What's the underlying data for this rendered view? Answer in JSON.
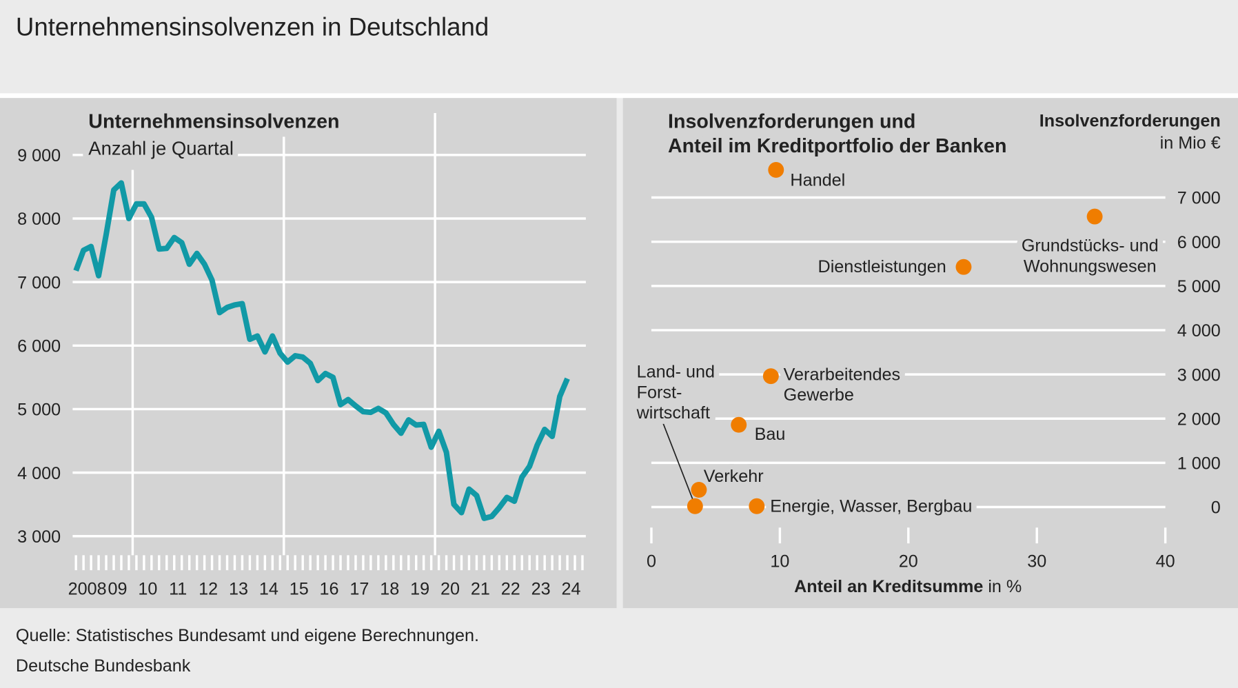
{
  "header": {
    "title": "Unternehmensinsolvenzen in Deutschland"
  },
  "chart_data": [
    {
      "type": "line",
      "title": "Unternehmensinsolvenzen",
      "subtitle": "Anzahl je Quartal",
      "x_labels": [
        "2008",
        "09",
        "10",
        "11",
        "12",
        "13",
        "14",
        "15",
        "16",
        "17",
        "18",
        "19",
        "20",
        "21",
        "22",
        "23",
        "24"
      ],
      "values": [
        7180,
        7500,
        7560,
        7100,
        7750,
        8450,
        8560,
        8000,
        8230,
        8230,
        8020,
        7520,
        7530,
        7700,
        7620,
        7280,
        7450,
        7280,
        7030,
        6520,
        6600,
        6640,
        6660,
        6100,
        6150,
        5900,
        6150,
        5880,
        5740,
        5840,
        5820,
        5720,
        5450,
        5560,
        5500,
        5070,
        5150,
        5050,
        4960,
        4950,
        5010,
        4940,
        4760,
        4620,
        4830,
        4750,
        4760,
        4400,
        4650,
        4320,
        3500,
        3370,
        3740,
        3640,
        3280,
        3310,
        3450,
        3610,
        3550,
        3930,
        4100,
        4430,
        4680,
        4570,
        5200,
        5480
      ],
      "color": "#1199a6",
      "ylim": [
        2700,
        9300
      ],
      "yticks": [
        {
          "value": 3000,
          "label": "3 000"
        },
        {
          "value": 4000,
          "label": "4 000"
        },
        {
          "value": 5000,
          "label": "5 000"
        },
        {
          "value": 6000,
          "label": "6 000"
        },
        {
          "value": 7000,
          "label": "7 000"
        },
        {
          "value": 8000,
          "label": "8 000"
        },
        {
          "value": 9000,
          "label": "9 000"
        }
      ],
      "grid": true
    },
    {
      "type": "scatter",
      "title": [
        "Insolvenzforderungen und",
        "Anteil im Kreditportfolio der Banken"
      ],
      "y_label": [
        "Insolvenzforderungen",
        "in Mio €"
      ],
      "x_label": [
        "Anteil an Kreditsumme",
        "in %"
      ],
      "labels": [
        [
          "Handel"
        ],
        [
          "Grundstücks- und",
          "Wohnungswesen"
        ],
        [
          "Dienstleistungen"
        ],
        [
          "Verarbeitendes",
          "Gewerbe"
        ],
        [
          "Bau"
        ],
        [
          "Verkehr"
        ],
        [
          "Land- und",
          "Forst-",
          "wirtschaft"
        ],
        [
          "Energie, Wasser, Bergbau"
        ]
      ],
      "x": [
        9.7,
        34.5,
        24.3,
        9.3,
        6.8,
        3.7,
        3.4,
        8.2
      ],
      "values": [
        7625,
        6570,
        5430,
        2960,
        1860,
        390,
        20,
        20
      ],
      "color": "#f07d00",
      "xlim": [
        0,
        40
      ],
      "xticks": [
        0,
        10,
        20,
        30,
        40
      ],
      "ylim": [
        -500,
        8000
      ],
      "yticks": [
        0,
        {
          "value": 1000,
          "label": "1 000"
        },
        {
          "value": 2000,
          "label": "2 000"
        },
        {
          "value": 3000,
          "label": "3 000"
        },
        {
          "value": 4000,
          "label": "4 000"
        },
        {
          "value": 5000,
          "label": "5 000"
        },
        {
          "value": 6000,
          "label": "6 000"
        },
        {
          "value": 7000,
          "label": "7 000"
        }
      ],
      "y_axis_side": "right",
      "grid": true
    }
  ],
  "footer": {
    "source": "Quelle: Statistisches Bundesamt und eigene Berechnungen.",
    "publisher": "Deutsche Bundesbank"
  }
}
